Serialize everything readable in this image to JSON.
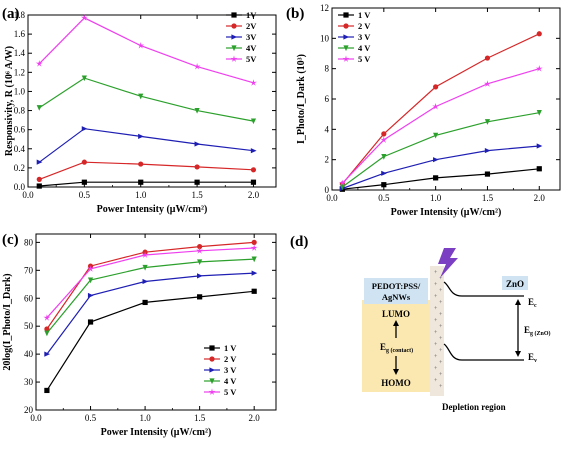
{
  "panels": {
    "a": {
      "label": "(a)",
      "chart_data": {
        "type": "line",
        "xlabel": "Power Intensity (μW/cm²)",
        "ylabel": "Responsivity, R (10⁶ A/W)",
        "x": [
          0.1,
          0.5,
          1.0,
          1.5,
          2.0
        ],
        "xlim": [
          0,
          2.2
        ],
        "ylim": [
          0,
          1.8
        ],
        "xticks": [
          "0.0",
          "0.5",
          "1.0",
          "1.5",
          "2.0"
        ],
        "yticks": [
          "0.0",
          "0.2",
          "0.4",
          "0.6",
          "0.8",
          "1.0",
          "1.2",
          "1.4",
          "1.6",
          "1.8"
        ],
        "yticks_num": [
          0,
          0.2,
          0.4,
          0.6,
          0.8,
          1.0,
          1.2,
          1.4,
          1.6,
          1.8
        ],
        "legend_position": "top-right",
        "series": [
          {
            "name": "1V",
            "color": "#000000",
            "marker": "square",
            "values": [
              0.01,
              0.05,
              0.05,
              0.05,
              0.05
            ]
          },
          {
            "name": "2V",
            "color": "#d62728",
            "marker": "circle",
            "values": [
              0.08,
              0.26,
              0.24,
              0.21,
              0.18
            ]
          },
          {
            "name": "3V",
            "color": "#1f1fb4",
            "marker": "triangle-right",
            "values": [
              0.26,
              0.61,
              0.53,
              0.45,
              0.38
            ]
          },
          {
            "name": "4V",
            "color": "#2ca02c",
            "marker": "triangle-down",
            "values": [
              0.83,
              1.14,
              0.95,
              0.8,
              0.69
            ]
          },
          {
            "name": "5V",
            "color": "#ee40ee",
            "marker": "star",
            "values": [
              1.29,
              1.77,
              1.48,
              1.26,
              1.09
            ]
          }
        ]
      }
    },
    "b": {
      "label": "(b)",
      "chart_data": {
        "type": "line",
        "xlabel": "Power Intensity (μW/cm²)",
        "ylabel": "I_Photo/I_Dark (10³)",
        "x": [
          0.1,
          0.5,
          1.0,
          1.5,
          2.0
        ],
        "xlim": [
          0,
          2.2
        ],
        "ylim": [
          0,
          12
        ],
        "xticks": [
          "0.0",
          "0.5",
          "1.0",
          "1.5",
          "2.0"
        ],
        "yticks": [
          "0",
          "2",
          "4",
          "6",
          "8",
          "10",
          "12"
        ],
        "yticks_num": [
          0,
          2,
          4,
          6,
          8,
          10,
          12
        ],
        "legend_position": "top-left",
        "series": [
          {
            "name": "1 V",
            "color": "#000000",
            "marker": "square",
            "values": [
              0.05,
              0.35,
              0.8,
              1.05,
              1.4
            ]
          },
          {
            "name": "2 V",
            "color": "#d62728",
            "marker": "circle",
            "values": [
              0.4,
              3.7,
              6.8,
              8.7,
              10.3
            ]
          },
          {
            "name": "3 V",
            "color": "#1f1fb4",
            "marker": "triangle-right",
            "values": [
              0.1,
              1.1,
              2.0,
              2.6,
              2.9
            ]
          },
          {
            "name": "4 V",
            "color": "#2ca02c",
            "marker": "triangle-down",
            "values": [
              0.2,
              2.2,
              3.6,
              4.5,
              5.1
            ]
          },
          {
            "name": "5 V",
            "color": "#ee40ee",
            "marker": "star",
            "values": [
              0.45,
              3.3,
              5.5,
              7.0,
              8.0
            ]
          }
        ]
      }
    },
    "c": {
      "label": "(c)",
      "chart_data": {
        "type": "line",
        "xlabel": "Power Intensity (μW/cm²)",
        "ylabel": "20log(I_Photo/I_Dark)",
        "x": [
          0.1,
          0.5,
          1.0,
          1.5,
          2.0
        ],
        "xlim": [
          0,
          2.2
        ],
        "ylim": [
          20,
          83
        ],
        "xticks": [
          "0.0",
          "0.5",
          "1.0",
          "1.5",
          "2.0"
        ],
        "yticks": [
          "20",
          "30",
          "40",
          "50",
          "60",
          "70",
          "80"
        ],
        "yticks_num": [
          20,
          30,
          40,
          50,
          60,
          70,
          80
        ],
        "legend_position": "bottom-right",
        "series": [
          {
            "name": "1 V",
            "color": "#000000",
            "marker": "square",
            "values": [
              27,
              51.5,
              58.5,
              60.5,
              62.5
            ]
          },
          {
            "name": "2 V",
            "color": "#d62728",
            "marker": "circle",
            "values": [
              49,
              71.5,
              76.5,
              78.5,
              80
            ]
          },
          {
            "name": "3 V",
            "color": "#1f1fb4",
            "marker": "triangle-right",
            "values": [
              40,
              61,
              66,
              68,
              69
            ]
          },
          {
            "name": "4 V",
            "color": "#2ca02c",
            "marker": "triangle-down",
            "values": [
              47.5,
              66.5,
              71,
              73,
              74
            ]
          },
          {
            "name": "5 V",
            "color": "#ee40ee",
            "marker": "star",
            "values": [
              53,
              70.5,
              75.5,
              77,
              78
            ]
          }
        ]
      }
    },
    "d": {
      "label": "(d)",
      "pedot_label_1": "PEDOT:PSS/",
      "pedot_label_2": "AgNWs",
      "lumo": "LUMO",
      "homo": "HOMO",
      "eg_contact": "E",
      "eg_contact_sub": "g (contact)",
      "zno": "ZnO",
      "ec": "E",
      "ec_sub": "c",
      "ev": "E",
      "ev_sub": "v",
      "eg_zno": "E",
      "eg_zno_sub": "g (ZnO)",
      "depletion": "Depletion region",
      "colors": {
        "pedot_fill": "#fbe8b0",
        "zno_fill": "#cfe3f2",
        "depletion_fill": "#efe6dc",
        "lightning": "#7b3fc4"
      }
    }
  }
}
